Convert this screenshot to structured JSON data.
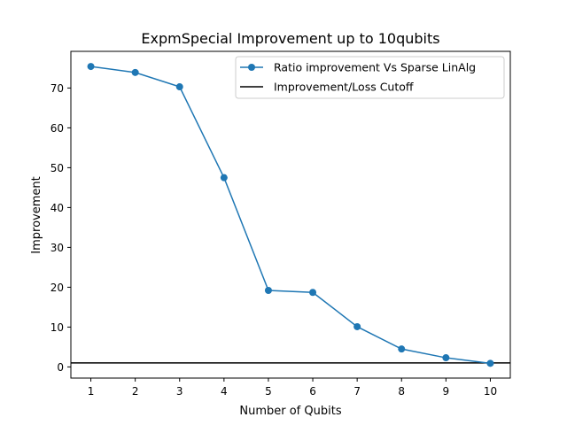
{
  "chart_data": {
    "type": "line",
    "title": "ExpmSpecial Improvement up to 10qubits",
    "xlabel": "Number of Qubits",
    "ylabel": "Improvement",
    "x": [
      1,
      2,
      3,
      4,
      5,
      6,
      7,
      8,
      9,
      10
    ],
    "series": [
      {
        "name": "Ratio improvement Vs Sparse LinAlg",
        "values": [
          75.4,
          73.9,
          70.3,
          47.5,
          19.2,
          18.7,
          10.1,
          4.5,
          2.3,
          0.9
        ],
        "color": "#1f77b4",
        "marker": "circle"
      }
    ],
    "reference_line": {
      "name": "Improvement/Loss Cutoff",
      "y": 1,
      "color": "#000000"
    },
    "xlim": [
      0.55,
      10.45
    ],
    "ylim": [
      -2.8,
      79.2
    ],
    "xticks": [
      1,
      2,
      3,
      4,
      5,
      6,
      7,
      8,
      9,
      10
    ],
    "yticks": [
      0,
      10,
      20,
      30,
      40,
      50,
      60,
      70
    ],
    "grid": false,
    "legend_position": "top-right"
  }
}
